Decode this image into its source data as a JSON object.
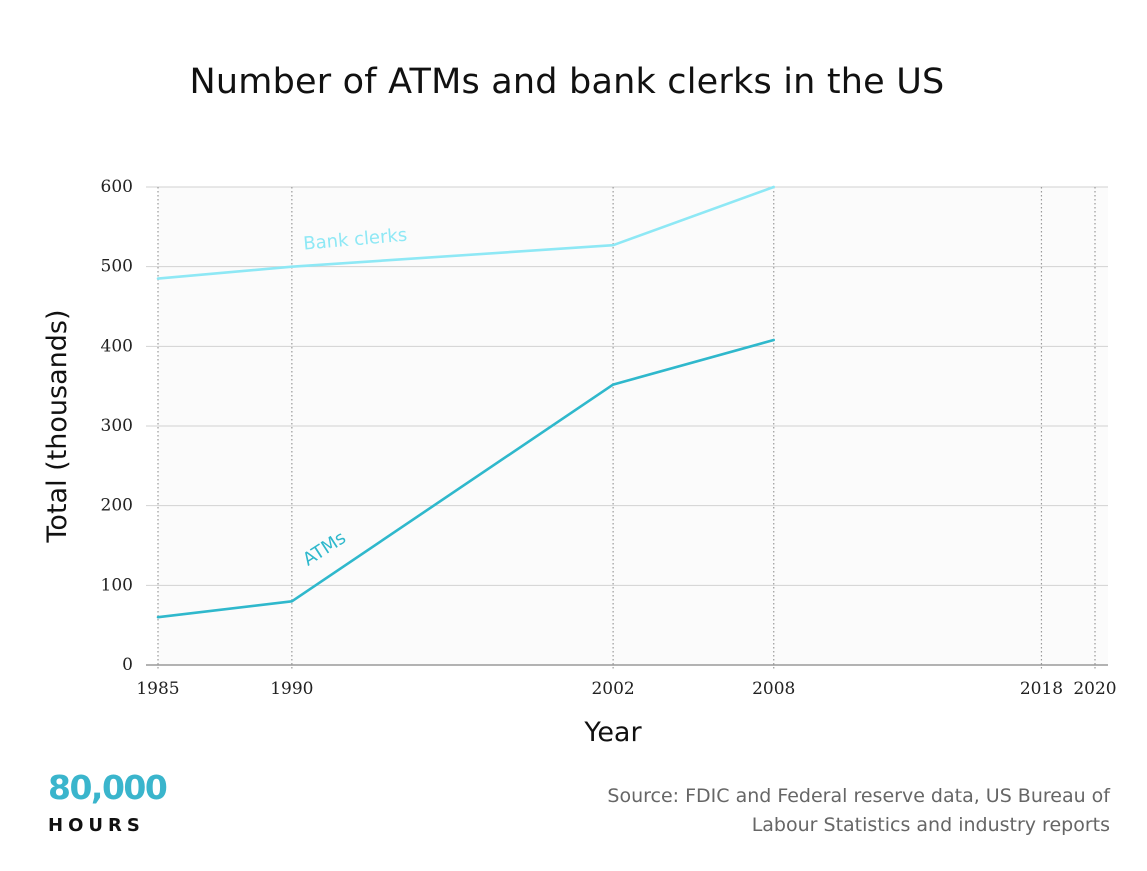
{
  "chart_data": {
    "type": "line",
    "title": "Number of ATMs and bank clerks in the US",
    "xlabel": "Year",
    "ylabel": "Total (thousands)",
    "x_ticks": [
      1985,
      1990,
      2002,
      2008,
      2018,
      2020
    ],
    "y_ticks": [
      0,
      100,
      200,
      300,
      400,
      500,
      600
    ],
    "xlim": [
      1985,
      2020
    ],
    "ylim": [
      0,
      600
    ],
    "grid": true,
    "series": [
      {
        "name": "Bank clerks",
        "color": "#8ee8f5",
        "points": [
          {
            "x": 1985,
            "y": 485
          },
          {
            "x": 1990,
            "y": 500
          },
          {
            "x": 2002,
            "y": 527
          },
          {
            "x": 2008,
            "y": 600
          }
        ]
      },
      {
        "name": "ATMs",
        "color": "#2fb8cc",
        "points": [
          {
            "x": 1985,
            "y": 60
          },
          {
            "x": 1990,
            "y": 80
          },
          {
            "x": 2002,
            "y": 352
          },
          {
            "x": 2008,
            "y": 408
          }
        ]
      }
    ]
  },
  "logo": {
    "number": "80,000",
    "word": "HOURS"
  },
  "source": {
    "line1": "Source: FDIC and Federal reserve data, US Bureau of",
    "line2": "Labour Statistics and industry reports"
  }
}
